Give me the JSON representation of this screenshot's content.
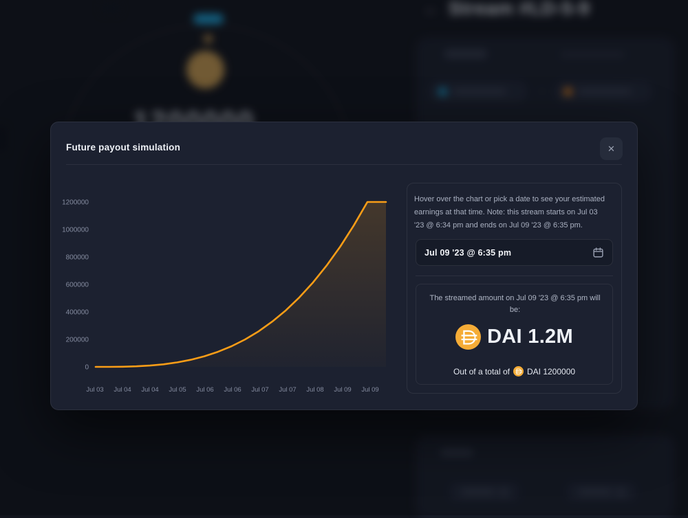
{
  "background": {
    "title": "Stream #LD-5-9",
    "counter": "1200000",
    "back_glyph": "←"
  },
  "modal": {
    "title": "Future payout simulation",
    "close_glyph": "✕"
  },
  "panel": {
    "info_text": "Hover over the chart or pick a date to see your estimated\nearnings at that time. Note: this stream starts on Jul 03\n'23 @ 6:34 pm and ends on Jul 09 '23 @ 6:35 pm.",
    "date_input": {
      "value": "Jul 09 '23 @ 6:35 pm",
      "icon": "calendar-icon"
    },
    "result": {
      "caption": "The streamed amount on Jul 09 '23 @ 6:35 pm will\nbe:",
      "amount": "DAI 1.2M",
      "total_prefix": "Out of a total of",
      "total_suffix": "DAI 1200000"
    }
  },
  "colors": {
    "accent_orange": "#f99d17",
    "dai": "#F5AC37",
    "fill_top": "rgba(249,157,23,0.18)",
    "fill_bottom": "rgba(249,157,23,0.02)",
    "pill_blue": "#1899c9",
    "pill_orange": "#df7f1f"
  },
  "chart_data": {
    "type": "area",
    "title": "",
    "xlabel": "",
    "ylabel": "",
    "legend": false,
    "grid": false,
    "ylim": [
      0,
      1200000
    ],
    "y_ticks": [
      0,
      200000,
      400000,
      600000,
      800000,
      1000000,
      1200000
    ],
    "x_labels": [
      "Jul 03",
      "Jul 04",
      "Jul 04",
      "Jul 05",
      "Jul 06",
      "Jul 06",
      "Jul 07",
      "Jul 07",
      "Jul 08",
      "Jul 09",
      "Jul 09"
    ],
    "series": [
      {
        "name": "streamed amount",
        "shape": "cubic growth then plateau at total",
        "points": [
          [
            0.0,
            0
          ],
          [
            0.0468,
            150
          ],
          [
            0.0936,
            1200
          ],
          [
            0.1404,
            4050
          ],
          [
            0.1872,
            9600
          ],
          [
            0.234,
            18750
          ],
          [
            0.2808,
            32400
          ],
          [
            0.3276,
            51450
          ],
          [
            0.3744,
            76800
          ],
          [
            0.4212,
            109350
          ],
          [
            0.468,
            150000
          ],
          [
            0.5148,
            199650
          ],
          [
            0.5616,
            259200
          ],
          [
            0.6084,
            329550
          ],
          [
            0.6552,
            411600
          ],
          [
            0.702,
            506250
          ],
          [
            0.7488,
            614400
          ],
          [
            0.7956,
            736950
          ],
          [
            0.8424,
            874800
          ],
          [
            0.8892,
            1028850
          ],
          [
            0.936,
            1200000
          ],
          [
            1.0,
            1200000
          ]
        ]
      }
    ]
  }
}
